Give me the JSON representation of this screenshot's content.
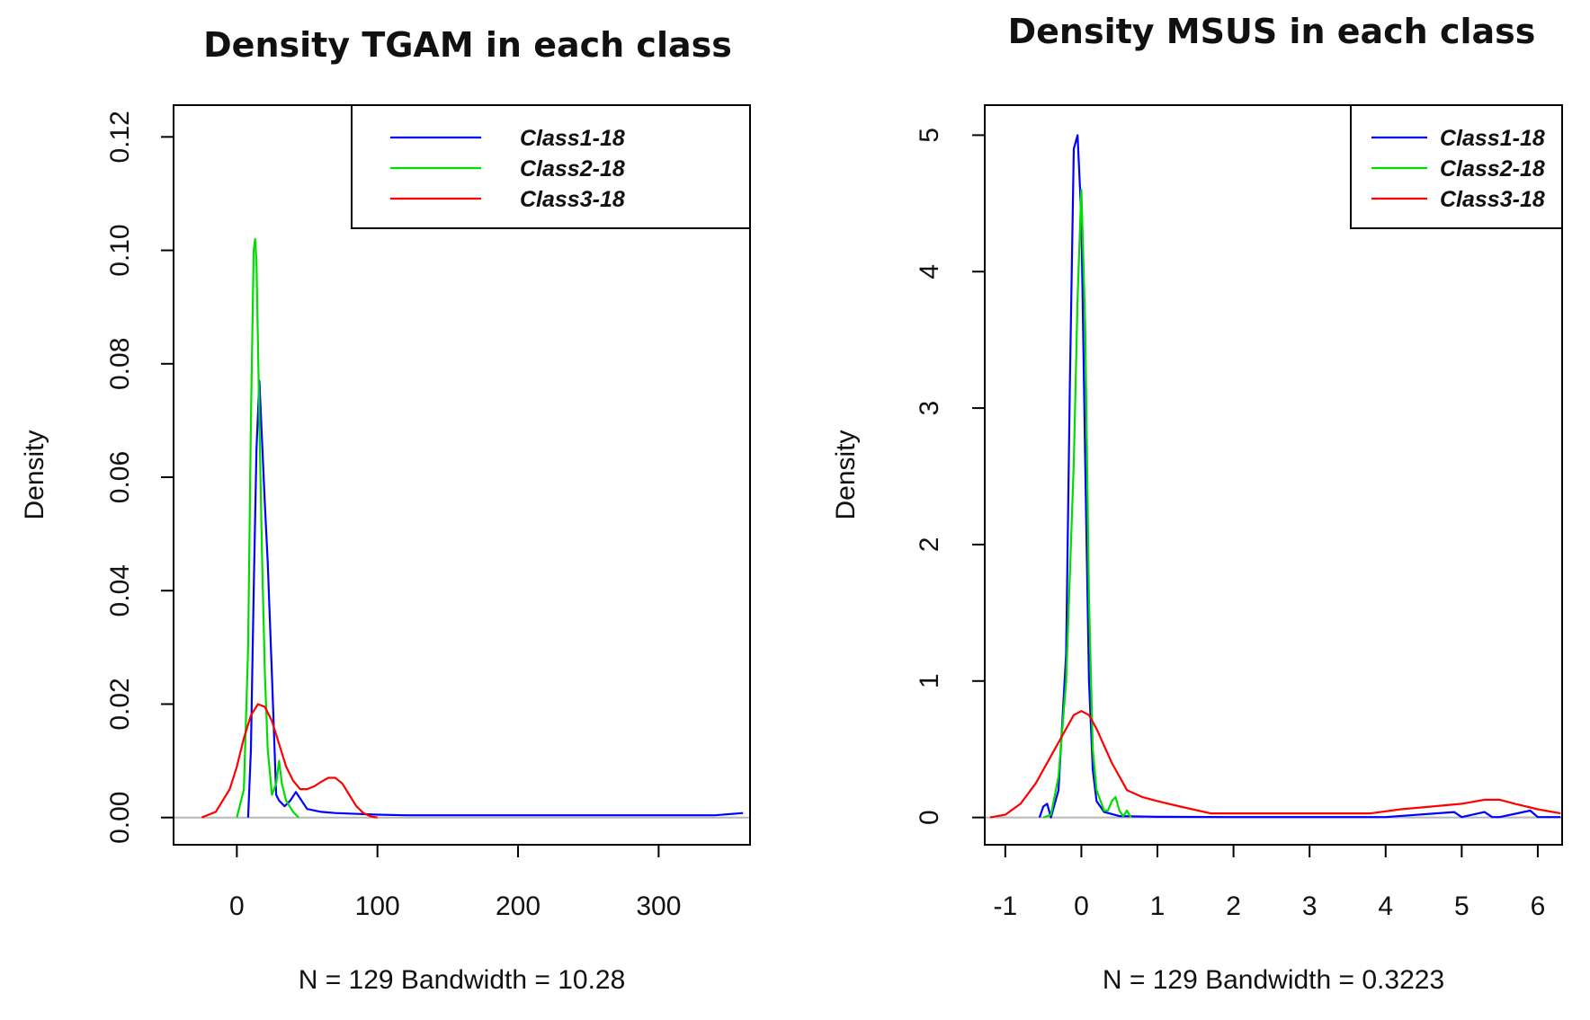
{
  "chart_data": [
    {
      "type": "line",
      "title": "Density TGAM in each class",
      "xlabel": "N = 129   Bandwidth = 10.28",
      "ylabel": "Density",
      "xlim": [
        -45,
        365
      ],
      "ylim": [
        -0.0048,
        0.1256
      ],
      "x_ticks": [
        0,
        100,
        200,
        300
      ],
      "x_tick_labels": [
        "0",
        "100",
        "200",
        "300"
      ],
      "y_ticks": [
        0.0,
        0.02,
        0.04,
        0.06,
        0.08,
        0.1,
        0.12
      ],
      "y_tick_labels": [
        "0.00",
        "0.02",
        "0.04",
        "0.06",
        "0.08",
        "0.10",
        "0.12"
      ],
      "legend_position": "top-right",
      "series": [
        {
          "name": "Class1-18",
          "color": "#0000ff",
          "x": [
            8,
            10,
            12,
            14,
            16,
            18,
            20,
            22,
            25,
            28,
            30,
            34,
            38,
            42,
            46,
            50,
            60,
            70,
            80,
            100,
            120,
            140,
            160,
            180,
            200,
            220,
            240,
            260,
            280,
            300,
            320,
            340,
            360
          ],
          "y": [
            0.0,
            0.012,
            0.04,
            0.065,
            0.077,
            0.066,
            0.055,
            0.045,
            0.025,
            0.004,
            0.003,
            0.002,
            0.003,
            0.0045,
            0.003,
            0.0015,
            0.001,
            0.0008,
            0.0007,
            0.0005,
            0.0004,
            0.0004,
            0.0004,
            0.0004,
            0.0004,
            0.0004,
            0.0004,
            0.0004,
            0.0004,
            0.0004,
            0.0004,
            0.0004,
            0.0008
          ]
        },
        {
          "name": "Class2-18",
          "color": "#00dd00",
          "x": [
            0,
            5,
            8,
            10,
            12,
            13,
            14,
            16,
            18,
            20,
            22,
            25,
            28,
            30,
            32,
            35,
            40,
            44
          ],
          "y": [
            0.0,
            0.005,
            0.03,
            0.07,
            0.1,
            0.102,
            0.098,
            0.07,
            0.045,
            0.025,
            0.012,
            0.004,
            0.006,
            0.01,
            0.006,
            0.003,
            0.001,
            0.0
          ]
        },
        {
          "name": "Class3-18",
          "color": "#ff0000",
          "x": [
            -25,
            -15,
            -5,
            0,
            5,
            10,
            15,
            20,
            25,
            30,
            35,
            40,
            45,
            50,
            55,
            60,
            65,
            70,
            75,
            80,
            85,
            90,
            95,
            100
          ],
          "y": [
            0.0,
            0.001,
            0.005,
            0.009,
            0.014,
            0.018,
            0.02,
            0.0195,
            0.017,
            0.013,
            0.009,
            0.0065,
            0.005,
            0.005,
            0.0055,
            0.0063,
            0.007,
            0.007,
            0.006,
            0.004,
            0.002,
            0.0008,
            0.0002,
            0.0
          ]
        }
      ],
      "legend": [
        "Class1-18",
        "Class2-18",
        "Class3-18"
      ]
    },
    {
      "type": "line",
      "title": "Density MSUS in each class",
      "xlabel": "N = 129   Bandwidth = 0.3223",
      "ylabel": "Density",
      "xlim": [
        -1.27,
        6.32
      ],
      "ylim": [
        -0.2,
        5.22
      ],
      "x_ticks": [
        -1,
        0,
        1,
        2,
        3,
        4,
        5,
        6
      ],
      "x_tick_labels": [
        "-1",
        "0",
        "1",
        "2",
        "3",
        "4",
        "5",
        "6"
      ],
      "y_ticks": [
        0,
        1,
        2,
        3,
        4,
        5
      ],
      "y_tick_labels": [
        "0",
        "1",
        "2",
        "3",
        "4",
        "5"
      ],
      "legend_position": "top-right",
      "series": [
        {
          "name": "Class1-18",
          "color": "#0000ff",
          "x": [
            -0.55,
            -0.5,
            -0.45,
            -0.4,
            -0.3,
            -0.2,
            -0.15,
            -0.1,
            -0.05,
            0.0,
            0.05,
            0.1,
            0.15,
            0.2,
            0.3,
            0.5,
            1.0,
            2.0,
            3.0,
            4.0,
            4.9,
            5.0,
            5.3,
            5.4,
            5.5,
            5.9,
            6.0,
            6.3
          ],
          "y": [
            0.0,
            0.08,
            0.1,
            0.0,
            0.2,
            1.2,
            3.2,
            4.9,
            5.0,
            4.4,
            2.6,
            1.0,
            0.35,
            0.12,
            0.04,
            0.01,
            0.005,
            0.003,
            0.003,
            0.003,
            0.04,
            0.003,
            0.04,
            0.003,
            0.003,
            0.05,
            0.003,
            0.003
          ]
        },
        {
          "name": "Class2-18",
          "color": "#00dd00",
          "x": [
            -0.5,
            -0.4,
            -0.3,
            -0.2,
            -0.1,
            -0.05,
            0.0,
            0.05,
            0.1,
            0.15,
            0.2,
            0.3,
            0.35,
            0.4,
            0.45,
            0.5,
            0.55,
            0.6,
            0.65
          ],
          "y": [
            0.0,
            0.02,
            0.3,
            1.0,
            2.6,
            3.8,
            4.6,
            3.6,
            1.6,
            0.5,
            0.2,
            0.05,
            0.05,
            0.12,
            0.15,
            0.05,
            0.01,
            0.05,
            0.0
          ]
        },
        {
          "name": "Class3-18",
          "color": "#ff0000",
          "x": [
            -1.2,
            -1.0,
            -0.8,
            -0.6,
            -0.4,
            -0.2,
            -0.1,
            0.0,
            0.1,
            0.2,
            0.4,
            0.6,
            0.8,
            1.0,
            1.3,
            1.7,
            2.0,
            3.0,
            3.8,
            4.2,
            4.6,
            5.0,
            5.3,
            5.5,
            5.7,
            6.0,
            6.3
          ],
          "y": [
            0.0,
            0.02,
            0.1,
            0.25,
            0.45,
            0.65,
            0.75,
            0.78,
            0.75,
            0.65,
            0.4,
            0.2,
            0.15,
            0.12,
            0.08,
            0.03,
            0.03,
            0.03,
            0.03,
            0.06,
            0.08,
            0.1,
            0.13,
            0.13,
            0.1,
            0.06,
            0.03
          ]
        }
      ],
      "legend": [
        "Class1-18",
        "Class2-18",
        "Class3-18"
      ]
    }
  ]
}
